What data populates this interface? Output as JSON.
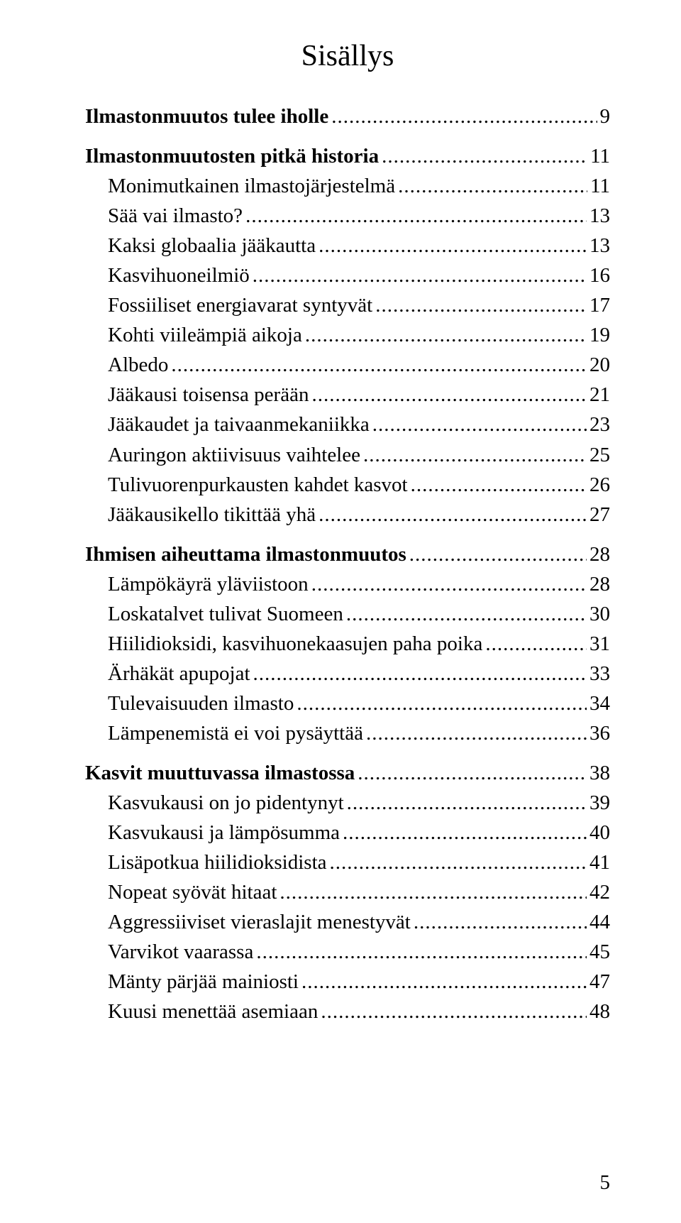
{
  "title": "Sisällys",
  "page_number": "5",
  "sections": [
    {
      "heading": {
        "label": "Ilmastonmuutos tulee iholle",
        "page": "9"
      },
      "items": []
    },
    {
      "heading": {
        "label": "Ilmastonmuutosten pitkä historia",
        "page": "11"
      },
      "items": [
        {
          "label": "Monimutkainen ilmastojärjestelmä",
          "page": "11"
        },
        {
          "label": "Sää vai ilmasto?",
          "page": "13"
        },
        {
          "label": "Kaksi globaalia jääkautta",
          "page": "13"
        },
        {
          "label": "Kasvihuoneilmiö",
          "page": "16"
        },
        {
          "label": "Fossiiliset energiavarat syntyvät",
          "page": "17"
        },
        {
          "label": "Kohti viileämpiä aikoja",
          "page": "19"
        },
        {
          "label": "Albedo",
          "page": "20"
        },
        {
          "label": "Jääkausi toisensa perään",
          "page": "21"
        },
        {
          "label": "Jääkaudet ja taivaanmekaniikka",
          "page": "23"
        },
        {
          "label": "Auringon aktiivisuus vaihtelee",
          "page": "25"
        },
        {
          "label": "Tulivuorenpurkausten kahdet kasvot",
          "page": "26"
        },
        {
          "label": "Jääkausikello tikittää yhä",
          "page": "27"
        }
      ]
    },
    {
      "heading": {
        "label": "Ihmisen aiheuttama ilmastonmuutos",
        "page": "28"
      },
      "items": [
        {
          "label": "Lämpökäyrä yläviistoon",
          "page": "28"
        },
        {
          "label": "Loskatalvet tulivat Suomeen",
          "page": "30"
        },
        {
          "label": "Hiilidioksidi, kasvihuonekaasujen paha poika",
          "page": "31"
        },
        {
          "label": "Ärhäkät apupojat",
          "page": "33"
        },
        {
          "label": "Tulevaisuuden ilmasto",
          "page": "34"
        },
        {
          "label": "Lämpenemistä ei voi pysäyttää",
          "page": "36"
        }
      ]
    },
    {
      "heading": {
        "label": "Kasvit muuttuvassa ilmastossa",
        "page": "38"
      },
      "items": [
        {
          "label": "Kasvukausi on jo pidentynyt",
          "page": "39"
        },
        {
          "label": "Kasvukausi ja lämpösumma",
          "page": "40"
        },
        {
          "label": "Lisäpotkua hiilidioksidista",
          "page": "41"
        },
        {
          "label": "Nopeat syövät hitaat",
          "page": "42"
        },
        {
          "label": "Aggressiiviset vieraslajit menestyvät",
          "page": "44"
        },
        {
          "label": "Varvikot vaarassa",
          "page": "45"
        },
        {
          "label": "Mänty pärjää mainiosti",
          "page": "47"
        },
        {
          "label": "Kuusi menettää asemiaan",
          "page": "48"
        }
      ]
    }
  ]
}
